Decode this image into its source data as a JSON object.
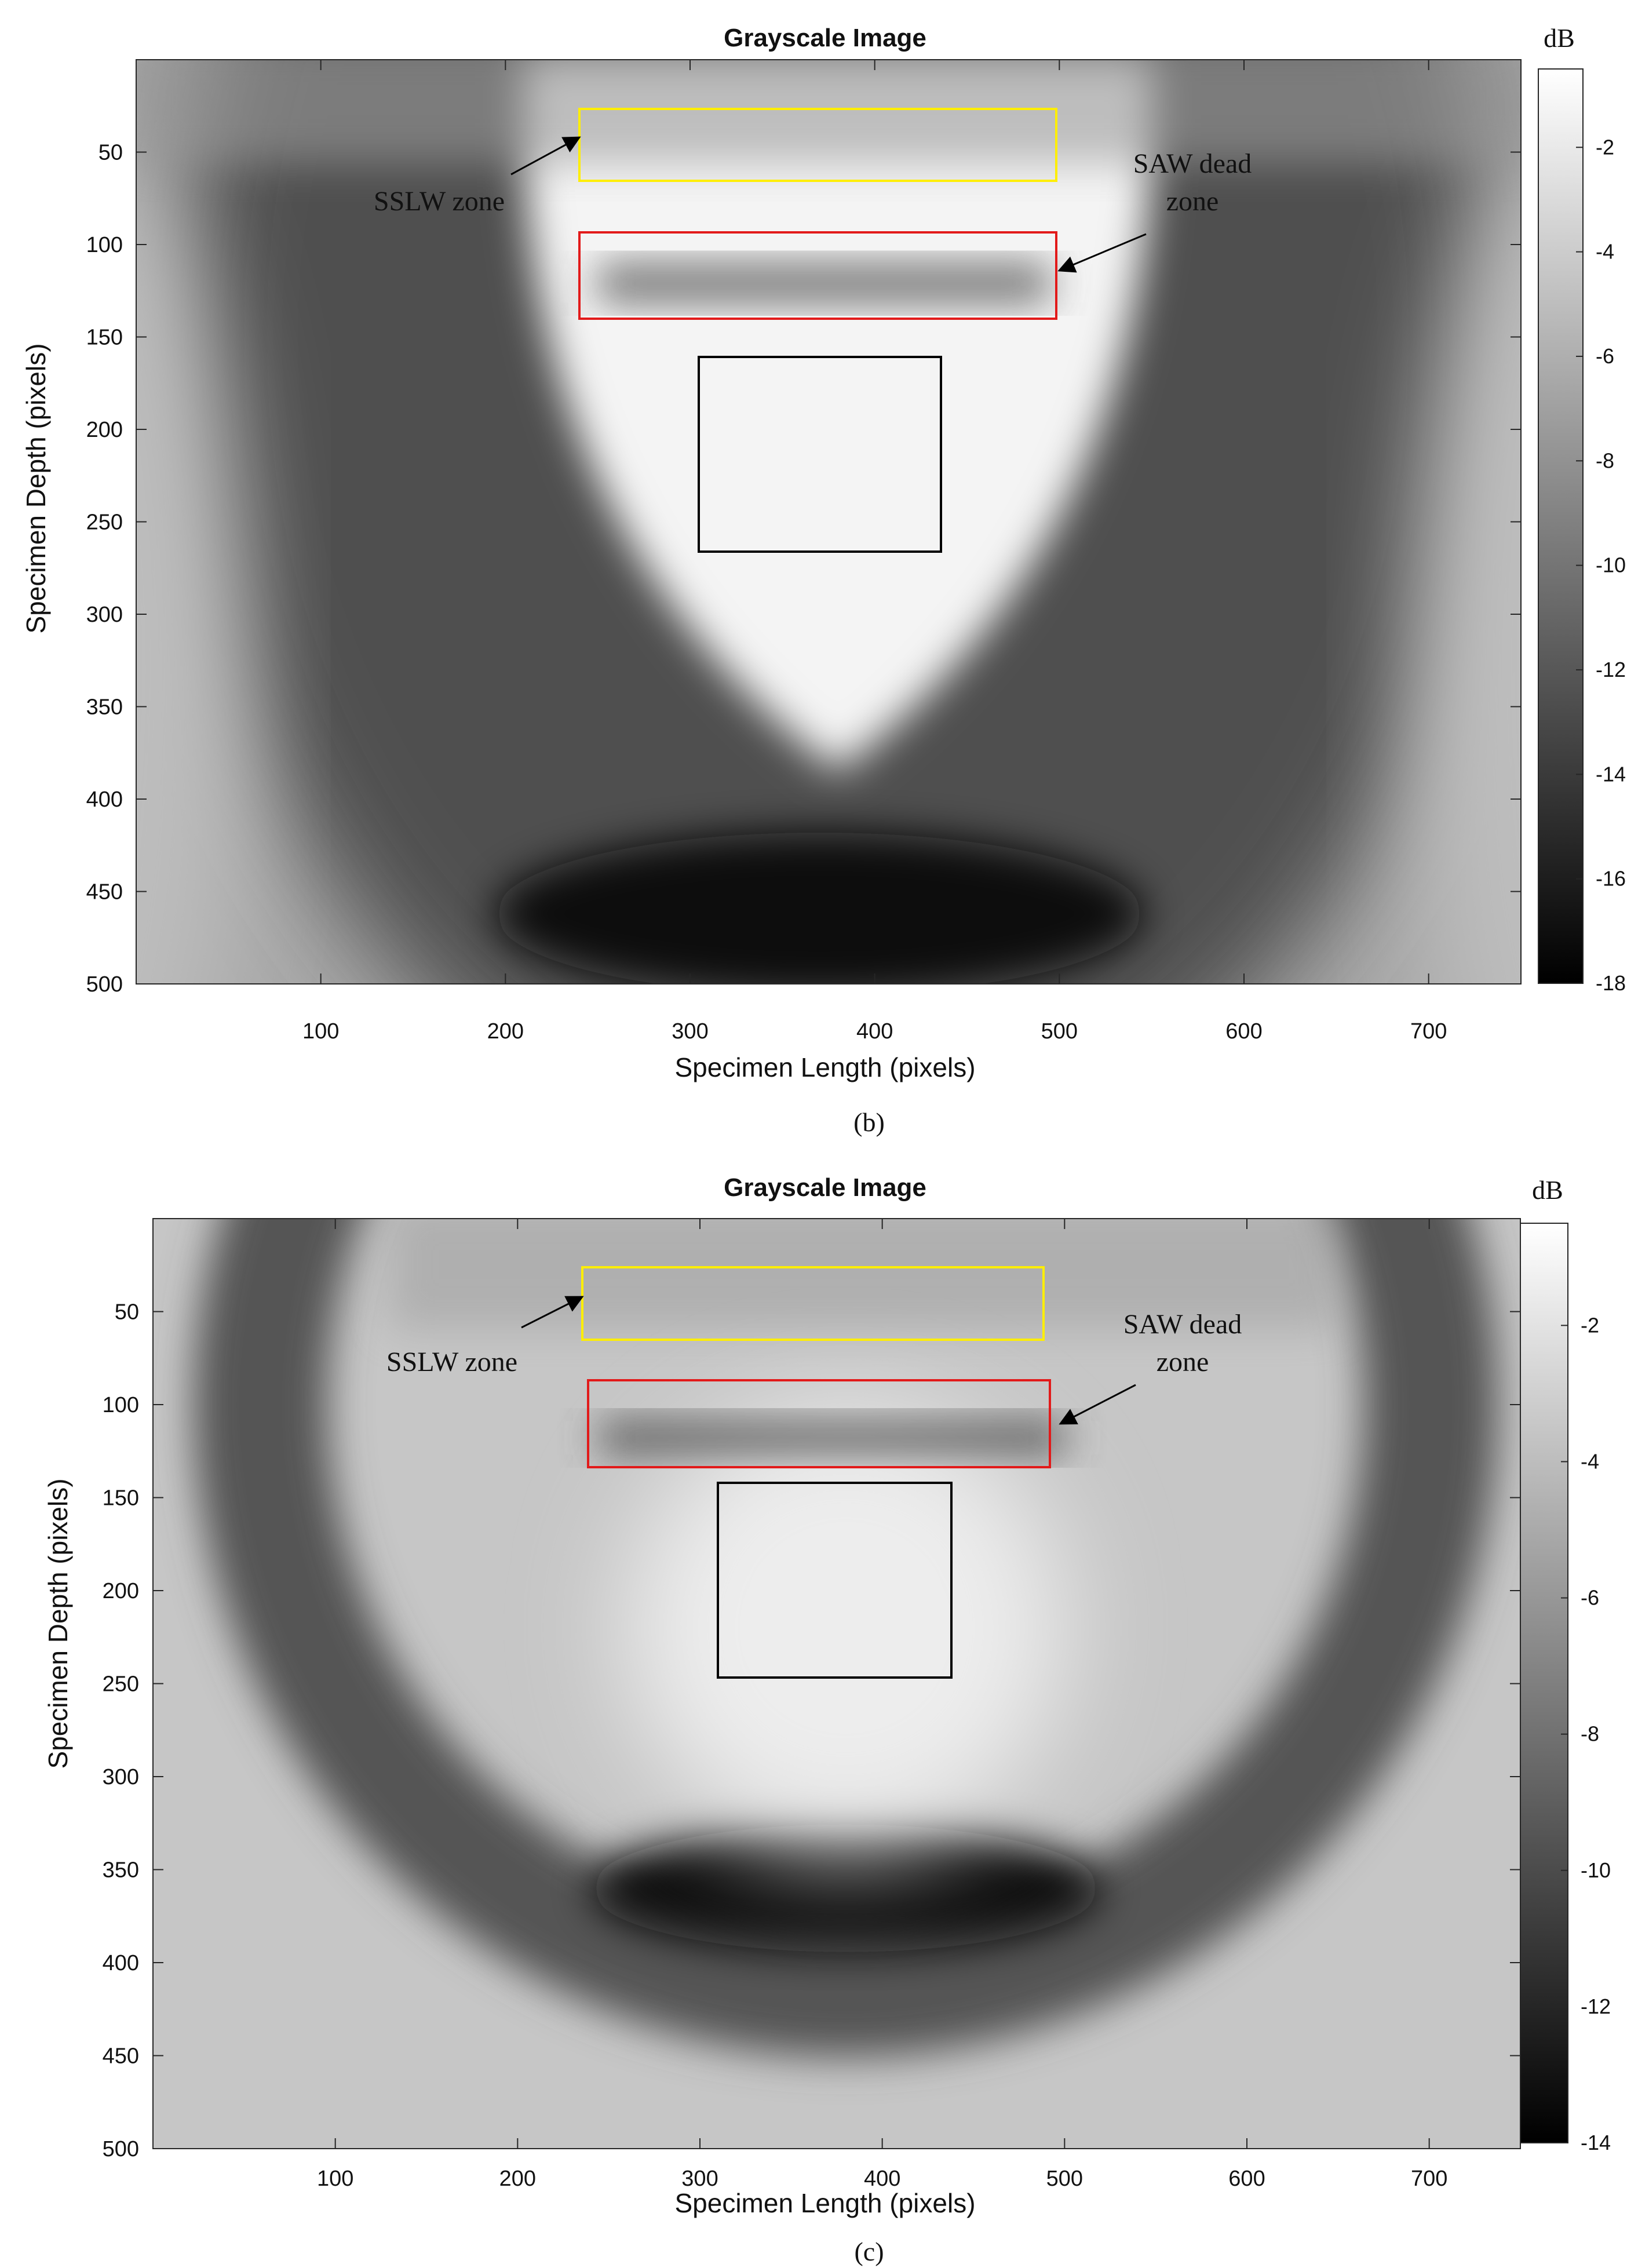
{
  "panels": [
    {
      "id": "b",
      "caption": "(b)",
      "title": "Grayscale Image",
      "xlabel": "Specimen Length (pixels)",
      "ylabel": "Specimen Depth (pixels)",
      "colorbar_unit": "dB",
      "annotations": {
        "sslw": "SSLW zone",
        "saw_line1": "SAW dead",
        "saw_line2": "zone"
      }
    },
    {
      "id": "c",
      "caption": "(c)",
      "title": "Grayscale Image",
      "xlabel": "Specimen Length (pixels)",
      "ylabel": "Specimen Depth (pixels)",
      "colorbar_unit": "dB",
      "annotations": {
        "sslw": "SSLW zone",
        "saw_line1": "SAW dead",
        "saw_line2": "zone"
      }
    }
  ],
  "chart_data": [
    {
      "type": "heatmap",
      "title": "Grayscale Image",
      "xlabel": "Specimen Length (pixels)",
      "ylabel": "Specimen Depth (pixels)",
      "xlim": [
        0,
        750
      ],
      "ylim": [
        500,
        0
      ],
      "xticks": [
        100,
        200,
        300,
        400,
        500,
        600,
        700
      ],
      "yticks": [
        50,
        100,
        150,
        200,
        250,
        300,
        350,
        400,
        450,
        500
      ],
      "colormap": "gray",
      "colorbar": {
        "label": "dB",
        "range": [
          -18,
          -0.5
        ],
        "ticks": [
          -2,
          -4,
          -6,
          -8,
          -10,
          -12,
          -14,
          -16,
          -18
        ]
      },
      "regions": [
        {
          "label": "SSLW zone",
          "color": "#ffee00",
          "x": [
            241,
            498
          ],
          "y": [
            27,
            67
          ]
        },
        {
          "label": "SAW dead zone",
          "color": "#e21a1a",
          "x": [
            241,
            498
          ],
          "y": [
            93,
            140
          ]
        },
        {
          "label": "",
          "color": "#000000",
          "x": [
            306,
            437
          ],
          "y": [
            161,
            267
          ]
        }
      ]
    },
    {
      "type": "heatmap",
      "title": "Grayscale Image",
      "xlabel": "Specimen Length (pixels)",
      "ylabel": "Specimen Depth (pixels)",
      "xlim": [
        0,
        750
      ],
      "ylim": [
        500,
        0
      ],
      "xticks": [
        100,
        200,
        300,
        400,
        500,
        600,
        700
      ],
      "yticks": [
        50,
        100,
        150,
        200,
        250,
        300,
        350,
        400,
        450,
        500
      ],
      "colormap": "gray",
      "colorbar": {
        "label": "dB",
        "range": [
          -14,
          -0.5
        ],
        "ticks": [
          -2,
          -4,
          -6,
          -8,
          -10,
          -12,
          -14
        ]
      },
      "regions": [
        {
          "label": "SSLW zone",
          "color": "#ffee00",
          "x": [
            241,
            499
          ],
          "y": [
            28,
            67
          ]
        },
        {
          "label": "SAW dead zone",
          "color": "#e21a1a",
          "x": [
            243,
            502
          ],
          "y": [
            88,
            135
          ]
        },
        {
          "label": "",
          "color": "#000000",
          "x": [
            316,
            447
          ],
          "y": [
            143,
            248
          ]
        }
      ]
    }
  ]
}
